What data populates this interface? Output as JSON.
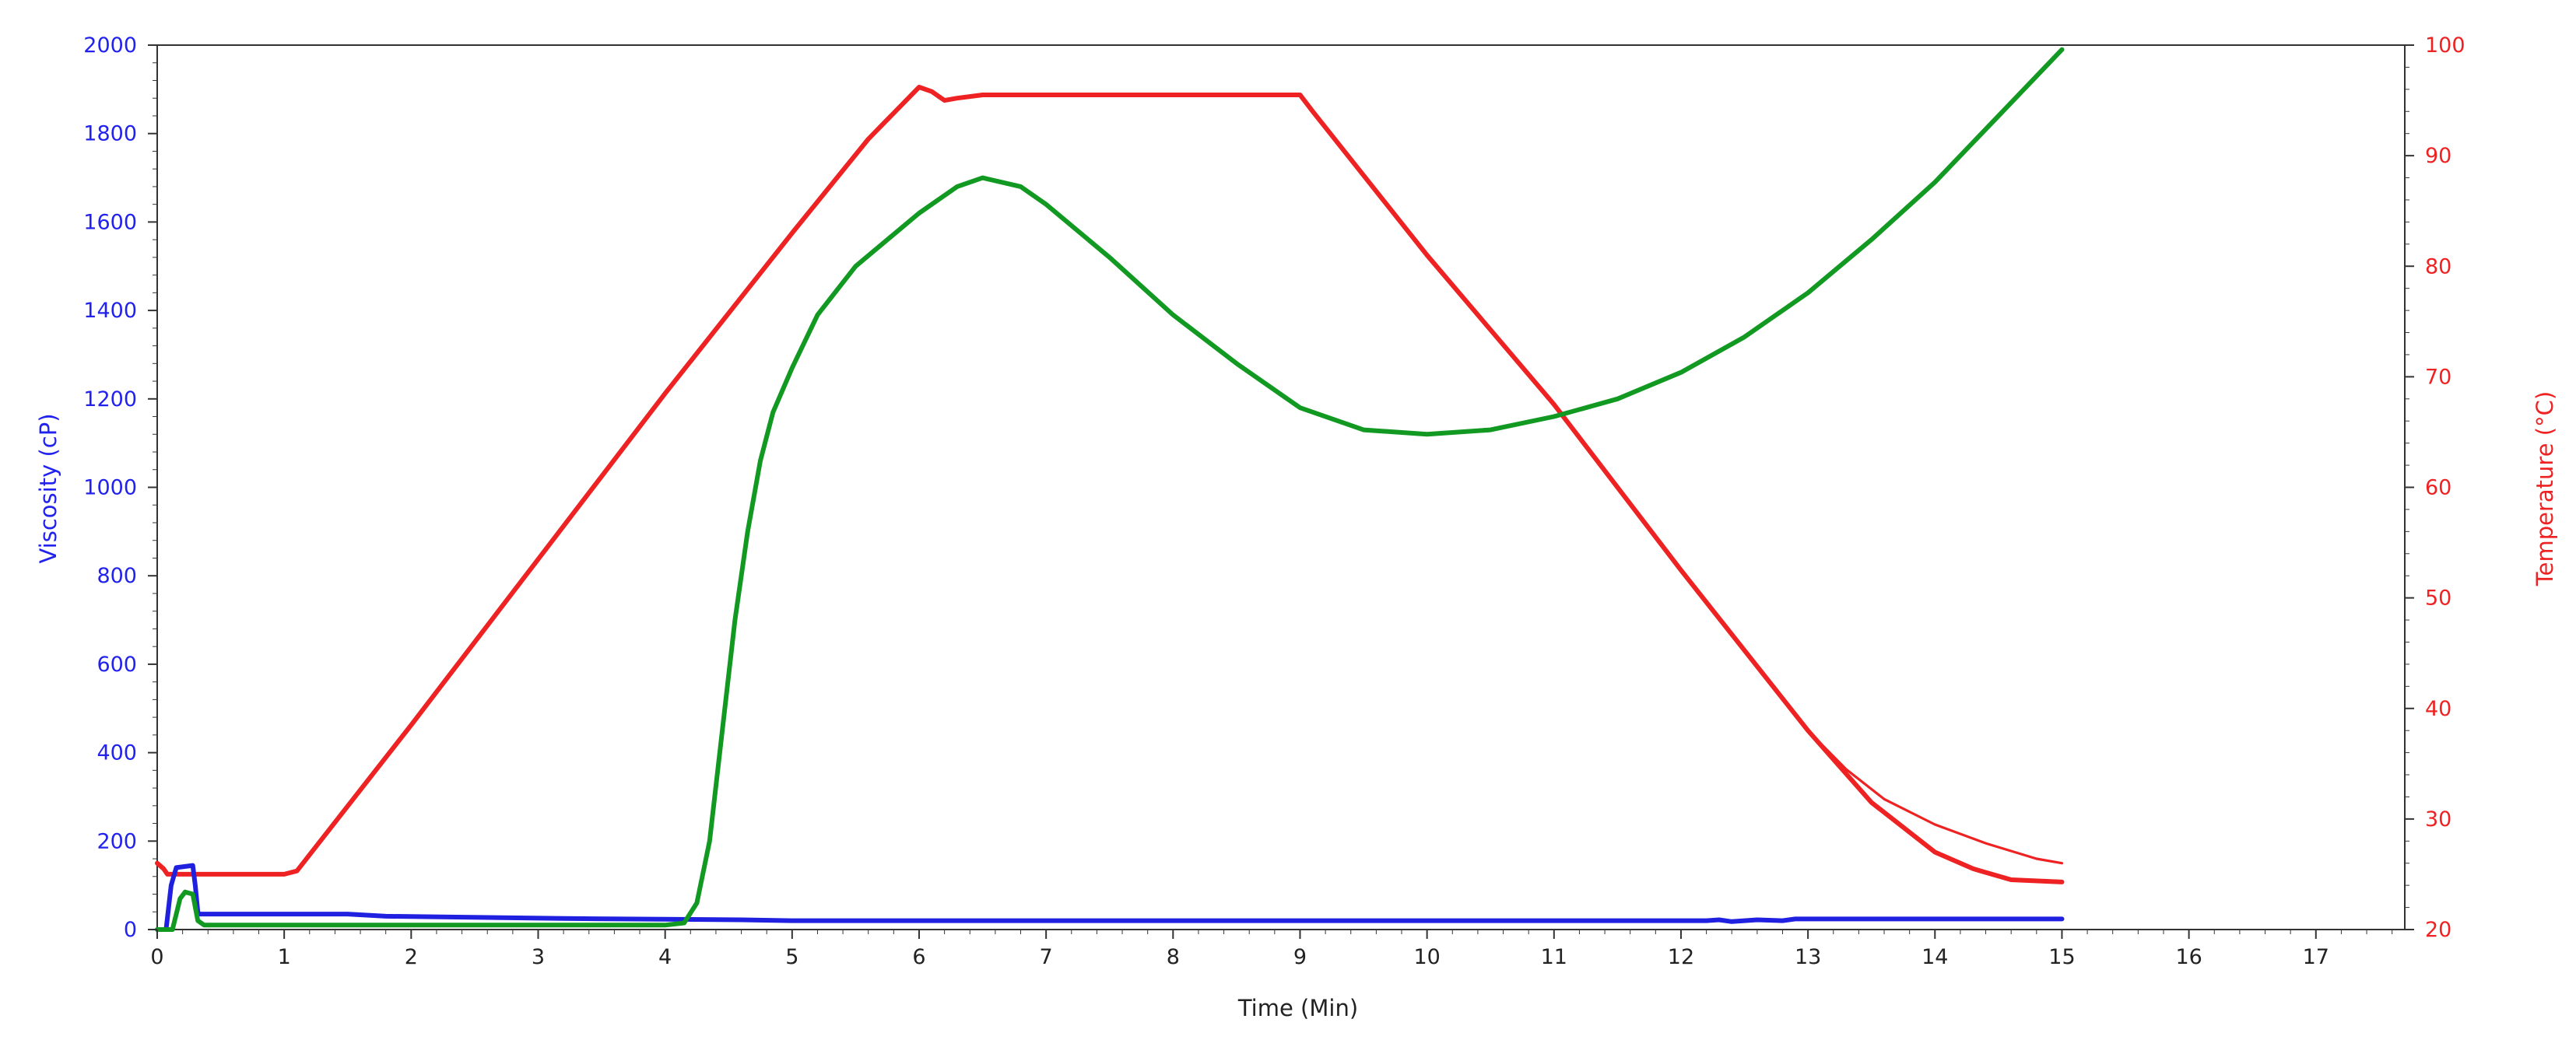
{
  "chart_data": {
    "type": "line",
    "title": "",
    "xlabel": "Time  (Min)",
    "ylabel_left": "Viscosity (cP)",
    "ylabel_right": "Temperature (°C)",
    "xlim": [
      0,
      17.7
    ],
    "ylim_left": [
      0,
      2000
    ],
    "ylim_right": [
      20,
      100
    ],
    "x_ticks": [
      0,
      1,
      2,
      3,
      4,
      5,
      6,
      7,
      8,
      9,
      10,
      11,
      12,
      13,
      14,
      15,
      16,
      17
    ],
    "y_ticks_left": [
      0,
      200,
      400,
      600,
      800,
      1000,
      1200,
      1400,
      1600,
      1800,
      2000
    ],
    "y_ticks_right": [
      20,
      30,
      40,
      50,
      60,
      70,
      80,
      90,
      100
    ],
    "grid": false,
    "legend": "none",
    "colors": {
      "left_axis": "#2222ee",
      "right_axis": "#ee2222",
      "axes": "#333333",
      "temperature": "#ee2222",
      "viscosity_blue": "#2020e0",
      "viscosity_green": "#119922"
    },
    "series": [
      {
        "axis": "right",
        "color_key": "temperature",
        "width": 3,
        "x": [
          0,
          0.05,
          0.08,
          0.1,
          1.0,
          1.1,
          2.0,
          3.0,
          4.0,
          5.0,
          5.6,
          6.0,
          6.1,
          6.2,
          6.3,
          6.5,
          7.0,
          8.0,
          9.0,
          9.1,
          10.0,
          11.0,
          12.0,
          13.0,
          13.5,
          14.0,
          14.3,
          14.6,
          15.0
        ],
        "y": [
          26,
          25.5,
          25,
          25,
          25,
          25.3,
          38.5,
          53.5,
          68.5,
          83,
          91.5,
          96.2,
          95.8,
          95,
          95.2,
          95.5,
          95.5,
          95.5,
          95.5,
          94,
          81,
          67.5,
          52.5,
          38,
          31.5,
          27,
          25.5,
          24.5,
          24.3
        ]
      },
      {
        "axis": "right",
        "color_key": "temperature",
        "width": 1.6,
        "x": [
          13.0,
          13.3,
          13.6,
          14.0,
          14.4,
          14.8,
          15.0
        ],
        "y": [
          38,
          34.5,
          31.8,
          29.5,
          27.8,
          26.4,
          26
        ]
      },
      {
        "axis": "left",
        "color_key": "viscosity_blue",
        "width": 3,
        "x": [
          0,
          0.07,
          0.11,
          0.15,
          0.28,
          0.3,
          0.32,
          0.33,
          1.5,
          1.8,
          3.2,
          4.6,
          5.0,
          12.2,
          12.3,
          12.4,
          12.6,
          12.8,
          12.9,
          15.0
        ],
        "y": [
          0,
          0,
          100,
          140,
          145,
          100,
          40,
          35,
          35,
          30,
          25,
          22,
          20,
          20,
          22,
          18,
          22,
          20,
          24,
          24
        ]
      },
      {
        "axis": "left",
        "color_key": "viscosity_green",
        "width": 3,
        "x": [
          0,
          0.12,
          0.18,
          0.22,
          0.28,
          0.32,
          0.37,
          1.0,
          4.0,
          4.15,
          4.25,
          4.35,
          4.45,
          4.55,
          4.65,
          4.75,
          4.85,
          5.0,
          5.2,
          5.5,
          6.0,
          6.3,
          6.5,
          6.8,
          7.0,
          7.5,
          8.0,
          8.5,
          9.0,
          9.5,
          10.0,
          10.5,
          11.0,
          11.5,
          12.0,
          12.5,
          13.0,
          13.5,
          14.0,
          14.5,
          15.0
        ],
        "y": [
          0,
          0,
          70,
          85,
          80,
          20,
          10,
          10,
          10,
          15,
          60,
          200,
          450,
          700,
          900,
          1060,
          1170,
          1270,
          1390,
          1500,
          1620,
          1680,
          1700,
          1680,
          1640,
          1520,
          1390,
          1280,
          1180,
          1130,
          1120,
          1130,
          1160,
          1200,
          1260,
          1340,
          1440,
          1560,
          1690,
          1840,
          1990
        ]
      }
    ]
  }
}
